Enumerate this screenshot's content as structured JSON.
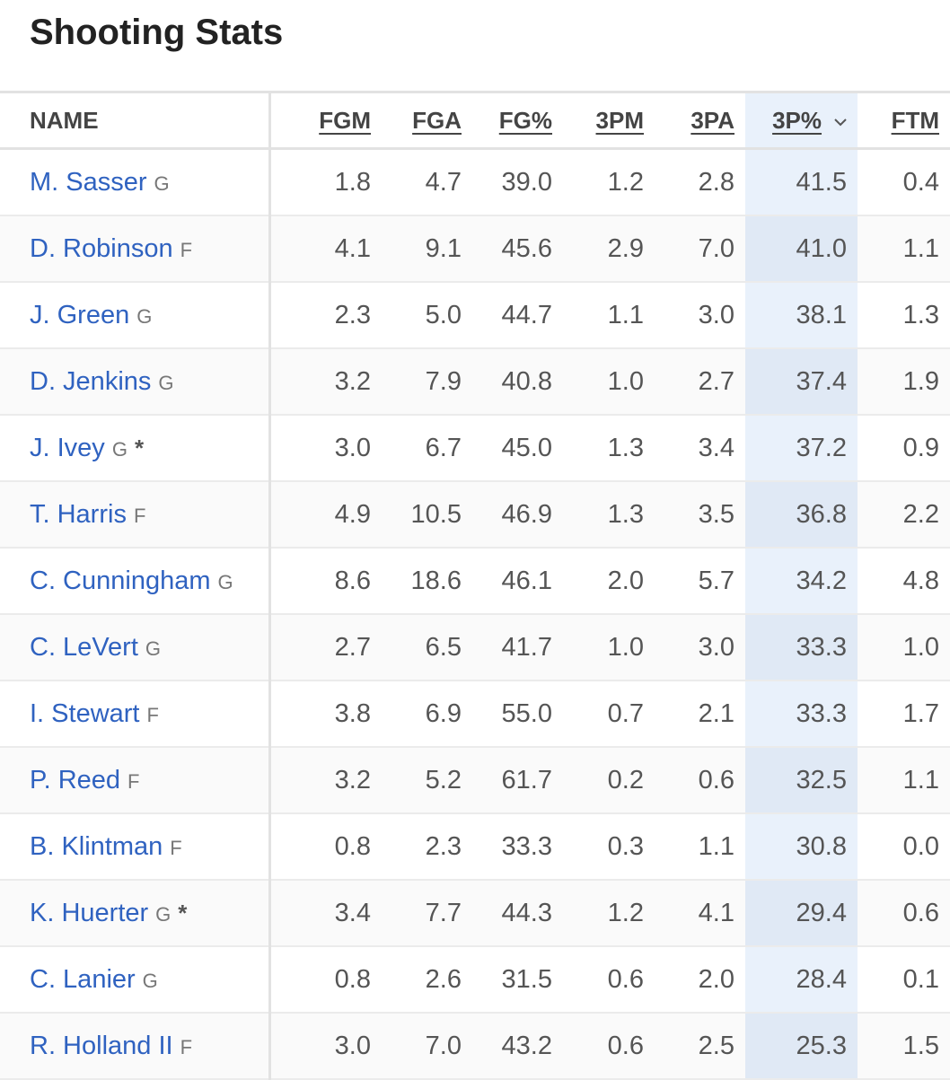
{
  "header": {
    "title": "Shooting Stats"
  },
  "table": {
    "columns": [
      "NAME",
      "FGM",
      "FGA",
      "FG%",
      "3PM",
      "3PA",
      "3P%",
      "FTM"
    ],
    "sorted_column": 6,
    "rows": [
      {
        "name": "M. Sasser",
        "position": "G",
        "stats": [
          "1.8",
          "4.7",
          "39.0",
          "1.2",
          "2.8",
          "41.5",
          "0.4"
        ]
      },
      {
        "name": "D. Robinson",
        "position": "F",
        "stats": [
          "4.1",
          "9.1",
          "45.6",
          "2.9",
          "7.0",
          "41.0",
          "1.1"
        ]
      },
      {
        "name": "J. Green",
        "position": "G",
        "stats": [
          "2.3",
          "5.0",
          "44.7",
          "1.1",
          "3.0",
          "38.1",
          "1.3"
        ]
      },
      {
        "name": "D. Jenkins",
        "position": "G",
        "stats": [
          "3.2",
          "7.9",
          "40.8",
          "1.0",
          "2.7",
          "37.4",
          "1.9"
        ]
      },
      {
        "name": "J. Ivey",
        "position": "G",
        "marker": "*",
        "stats": [
          "3.0",
          "6.7",
          "45.0",
          "1.3",
          "3.4",
          "37.2",
          "0.9"
        ]
      },
      {
        "name": "T. Harris",
        "position": "F",
        "stats": [
          "4.9",
          "10.5",
          "46.9",
          "1.3",
          "3.5",
          "36.8",
          "2.2"
        ]
      },
      {
        "name": "C. Cunningham",
        "position": "G",
        "stats": [
          "8.6",
          "18.6",
          "46.1",
          "2.0",
          "5.7",
          "34.2",
          "4.8"
        ]
      },
      {
        "name": "C. LeVert",
        "position": "G",
        "stats": [
          "2.7",
          "6.5",
          "41.7",
          "1.0",
          "3.0",
          "33.3",
          "1.0"
        ]
      },
      {
        "name": "I. Stewart",
        "position": "F",
        "stats": [
          "3.8",
          "6.9",
          "55.0",
          "0.7",
          "2.1",
          "33.3",
          "1.7"
        ]
      },
      {
        "name": "P. Reed",
        "position": "F",
        "stats": [
          "3.2",
          "5.2",
          "61.7",
          "0.2",
          "0.6",
          "32.5",
          "1.1"
        ]
      },
      {
        "name": "B. Klintman",
        "position": "F",
        "stats": [
          "0.8",
          "2.3",
          "33.3",
          "0.3",
          "1.1",
          "30.8",
          "0.0"
        ]
      },
      {
        "name": "K. Huerter",
        "position": "G",
        "marker": "*",
        "stats": [
          "3.4",
          "7.7",
          "44.3",
          "1.2",
          "4.1",
          "29.4",
          "0.6"
        ]
      },
      {
        "name": "C. Lanier",
        "position": "G",
        "stats": [
          "0.8",
          "2.6",
          "31.5",
          "0.6",
          "2.0",
          "28.4",
          "0.1"
        ]
      },
      {
        "name": "R. Holland II",
        "position": "F",
        "stats": [
          "3.0",
          "7.0",
          "43.2",
          "0.6",
          "2.5",
          "25.3",
          "1.5"
        ]
      }
    ]
  }
}
